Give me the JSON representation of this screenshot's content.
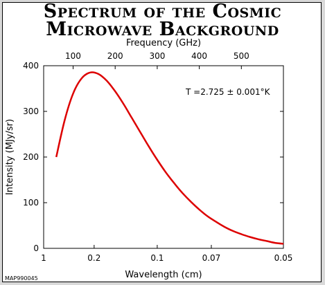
{
  "chart_data": {
    "type": "line",
    "title": "Spectrum of the Cosmic Microwave Background",
    "title_lines": [
      "Spectrum of the Cosmic",
      "Microwave Background"
    ],
    "xlabel": "Wavelength (cm)",
    "x2label": "Frequency (GHz)",
    "ylabel": "Intensity (MJy/sr)",
    "annotation": "T =2.725 ± 0.001°K",
    "corner_label": "MAP990045",
    "ylim": [
      0,
      400
    ],
    "yticks": [
      0,
      100,
      200,
      300,
      400
    ],
    "ytick_labels": [
      "0",
      "100",
      "200",
      "300",
      "400"
    ],
    "xlim_frequency_ghz": [
      30,
      600
    ],
    "xticks": [
      {
        "label": "1",
        "freq_ghz": 30
      },
      {
        "label": "0.2",
        "freq_ghz": 150
      },
      {
        "label": "0.1",
        "freq_ghz": 300
      },
      {
        "label": "0.07",
        "freq_ghz": 428.6
      },
      {
        "label": "0.05",
        "freq_ghz": 600
      }
    ],
    "x2ticks": [
      {
        "label": "100",
        "freq_ghz": 100
      },
      {
        "label": "200",
        "freq_ghz": 200
      },
      {
        "label": "300",
        "freq_ghz": 300
      },
      {
        "label": "400",
        "freq_ghz": 400
      },
      {
        "label": "500",
        "freq_ghz": 500
      }
    ],
    "series": [
      {
        "color": "#dd0000",
        "points": [
          [
            60,
            200
          ],
          [
            80,
            281
          ],
          [
            100,
            339
          ],
          [
            120,
            372
          ],
          [
            140,
            385
          ],
          [
            160,
            382
          ],
          [
            180,
            367
          ],
          [
            200,
            344
          ],
          [
            220,
            316
          ],
          [
            240,
            285
          ],
          [
            260,
            254
          ],
          [
            280,
            223
          ],
          [
            300,
            194
          ],
          [
            320,
            167
          ],
          [
            340,
            143
          ],
          [
            360,
            121
          ],
          [
            380,
            102
          ],
          [
            400,
            85
          ],
          [
            420,
            70
          ],
          [
            440,
            58
          ],
          [
            460,
            47
          ],
          [
            480,
            38
          ],
          [
            500,
            31
          ],
          [
            520,
            25
          ],
          [
            540,
            20
          ],
          [
            560,
            16
          ],
          [
            580,
            12
          ],
          [
            600,
            10
          ]
        ]
      }
    ]
  }
}
